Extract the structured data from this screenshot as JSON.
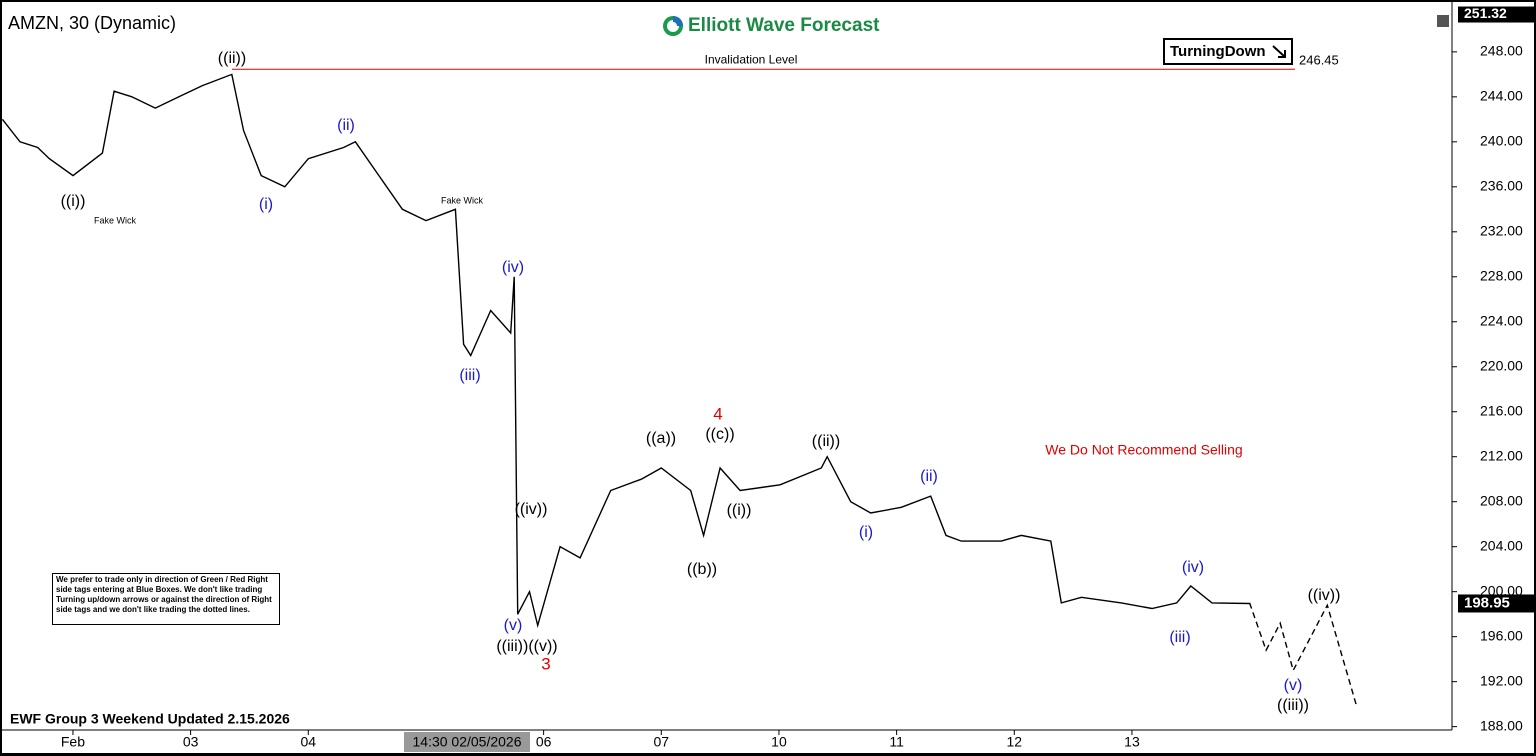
{
  "chart_data": {
    "type": "price-line",
    "title": "AMZN, 30 (Dynamic)",
    "brand": "Elliott Wave Forecast",
    "tag": "TurningDown",
    "warning": "We Do Not Recommend Selling",
    "note": "We prefer to trade only in direction of Green / Red Right side tags entering at Blue Boxes. We don't like trading Turning up/down arrows or against the direction of Right side tags and we don't like trading the dotted lines.",
    "footer": "EWF Group 3 Weekend Updated 2.15.2026",
    "crosshair_label": "14:30 02/05/2026",
    "invalidation": {
      "label": "Invalidation Level",
      "value": 246.45
    },
    "high_price": 251.32,
    "last_price": 198.95,
    "xlim": [
      -0.62,
      11.72
    ],
    "ylim": [
      187.7,
      251.9
    ],
    "xticks": [
      {
        "value": 0,
        "label": "Feb"
      },
      {
        "value": 1,
        "label": "03"
      },
      {
        "value": 2,
        "label": "04"
      },
      {
        "value": 4,
        "label": "06"
      },
      {
        "value": 5,
        "label": "07"
      },
      {
        "value": 6,
        "label": "10"
      },
      {
        "value": 7,
        "label": "11"
      },
      {
        "value": 8,
        "label": "12"
      },
      {
        "value": 9,
        "label": "13"
      }
    ],
    "yticks": [
      {
        "value": 188,
        "label": "188.00"
      },
      {
        "value": 192,
        "label": "192.00"
      },
      {
        "value": 196,
        "label": "196.00"
      },
      {
        "value": 200,
        "label": "200.00"
      },
      {
        "value": 204,
        "label": "204.00"
      },
      {
        "value": 208,
        "label": "208.00"
      },
      {
        "value": 212,
        "label": "212.00"
      },
      {
        "value": 216,
        "label": "216.00"
      },
      {
        "value": 220,
        "label": "220.00"
      },
      {
        "value": 224,
        "label": "224.00"
      },
      {
        "value": 228,
        "label": "228.00"
      },
      {
        "value": 232,
        "label": "232.00"
      },
      {
        "value": 236,
        "label": "236.00"
      },
      {
        "value": 240,
        "label": "240.00"
      },
      {
        "value": 244,
        "label": "244.00"
      },
      {
        "value": 248,
        "label": "248.00"
      }
    ],
    "price": {
      "color": "#000000",
      "x": [
        -0.6,
        -0.45,
        -0.3,
        -0.2,
        0.0,
        0.25,
        0.35,
        0.5,
        0.7,
        0.9,
        1.1,
        1.35,
        1.45,
        1.6,
        1.8,
        2.0,
        2.3,
        2.4,
        2.6,
        2.8,
        3.0,
        3.25,
        3.32,
        3.38,
        3.55,
        3.72,
        3.75,
        3.78,
        3.88,
        3.95,
        4.14,
        4.31,
        4.57,
        4.83,
        5.0,
        5.25,
        5.36,
        5.5,
        5.67,
        6.01,
        6.36,
        6.41,
        6.61,
        6.78,
        7.04,
        7.29,
        7.42,
        7.55,
        7.89,
        8.06,
        8.31,
        8.4,
        8.57,
        8.91,
        9.17,
        9.38,
        9.5,
        9.68,
        10.0
      ],
      "values": [
        242,
        240,
        239.5,
        238.5,
        237,
        239,
        244.5,
        244,
        243,
        244,
        245,
        246,
        241,
        237,
        236,
        238.5,
        239.5,
        240,
        237,
        234,
        233,
        234,
        222,
        221,
        225,
        223,
        228,
        198,
        200,
        197,
        204,
        203,
        209,
        210,
        211,
        209,
        205,
        211,
        209,
        209.5,
        211,
        212,
        208,
        207,
        207.5,
        208.5,
        205,
        204.5,
        204.5,
        205,
        204.5,
        199,
        199.5,
        199,
        198.5,
        199,
        200.5,
        199,
        198.95
      ]
    },
    "projection": {
      "color": "#000000",
      "x": [
        10.0,
        10.14,
        10.26,
        10.37,
        10.66,
        10.91
      ],
      "values": [
        199,
        194.8,
        197.2,
        193.0,
        198.8,
        189.8
      ]
    },
    "wave_labels": [
      {
        "text": "((i))",
        "color": "#000000"
      },
      {
        "text": "Fake Wick",
        "color": "#000000"
      },
      {
        "text": "((ii))",
        "color": "#000000"
      },
      {
        "text": "(i)",
        "color": "#1a1acc"
      },
      {
        "text": "(ii)",
        "color": "#1a1acc"
      },
      {
        "text": "Fake Wick",
        "color": "#000000"
      },
      {
        "text": "(iv)",
        "color": "#1a1acc"
      },
      {
        "text": "(iii)",
        "color": "#1a1acc"
      },
      {
        "text": "((iv))",
        "color": "#000000"
      },
      {
        "text": "(v)",
        "color": "#1a1acc"
      },
      {
        "text": "((iii))((v))",
        "color": "#000000"
      },
      {
        "text": "3",
        "color": "#e00000"
      },
      {
        "text": "((a))",
        "color": "#000000"
      },
      {
        "text": "4",
        "color": "#e00000"
      },
      {
        "text": "((c))",
        "color": "#000000"
      },
      {
        "text": "((b))",
        "color": "#000000"
      },
      {
        "text": "((i))",
        "color": "#000000"
      },
      {
        "text": "((ii))",
        "color": "#000000"
      },
      {
        "text": "(i)",
        "color": "#1a1acc"
      },
      {
        "text": "(ii)",
        "color": "#1a1acc"
      },
      {
        "text": "(iv)",
        "color": "#1a1acc"
      },
      {
        "text": "(iii)",
        "color": "#1a1acc"
      },
      {
        "text": "((iv))",
        "color": "#000000"
      },
      {
        "text": "(v)",
        "color": "#1a1acc"
      },
      {
        "text": "((iii))",
        "color": "#000000"
      }
    ]
  }
}
